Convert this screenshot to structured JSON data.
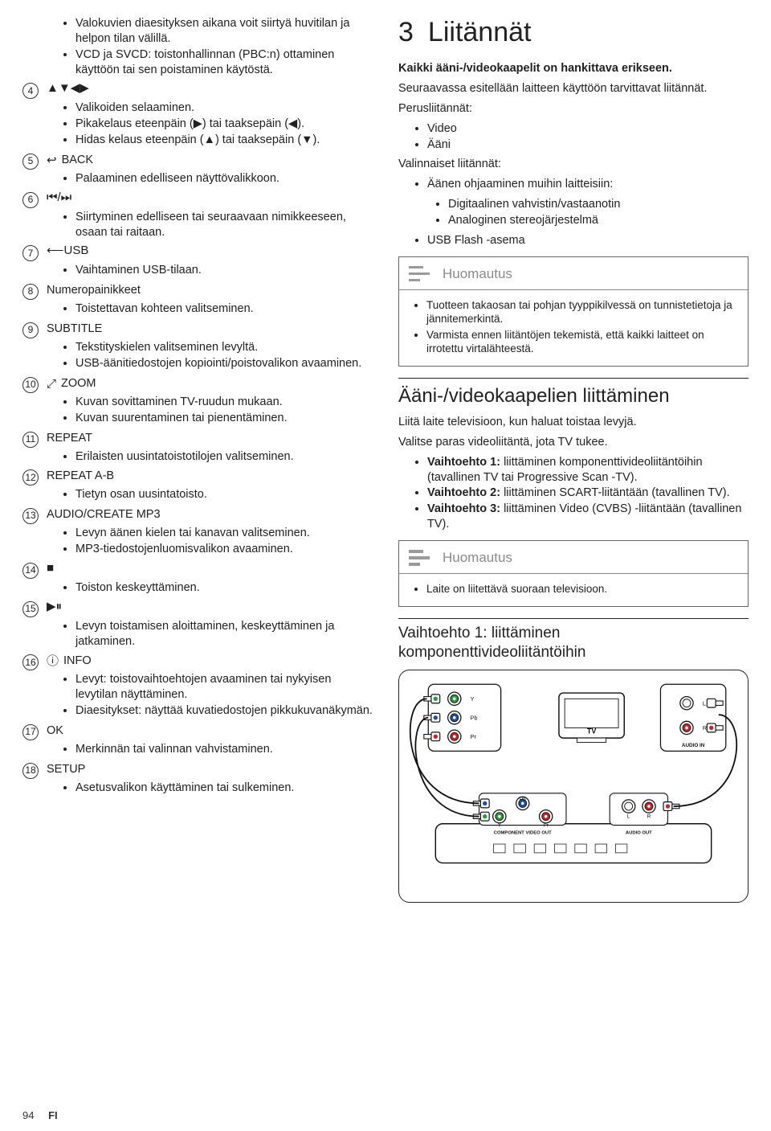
{
  "left": {
    "pre_items": [
      "Valokuvien diaesityksen aikana voit siirtyä huvitilan ja helpon tilan välillä.",
      "VCD ja SVCD: toistonhallinnan (PBC:n) ottaminen käyttöön tai sen poistaminen käytöstä."
    ],
    "entries": [
      {
        "num": "4",
        "symbol": "▲▼◀▶",
        "label": "",
        "bullets": [
          "Valikoiden selaaminen.",
          "Pikakelaus eteenpäin (▶) tai taaksepäin (◀).",
          "Hidas kelaus eteenpäin (▲) tai taaksepäin (▼)."
        ]
      },
      {
        "num": "5",
        "symbol": "↩",
        "label": "BACK",
        "bullets": [
          "Palaaminen edelliseen näyttövalikkoon."
        ]
      },
      {
        "num": "6",
        "symbol": "⏮/⏭",
        "label": "",
        "bullets": [
          "Siirtyminen edelliseen tai seuraavaan nimikkeeseen, osaan tai raitaan."
        ]
      },
      {
        "num": "7",
        "symbol": "⟵USB",
        "label": "",
        "bullets": [
          "Vaihtaminen USB-tilaan."
        ]
      },
      {
        "num": "8",
        "symbol": "",
        "label": "Numeropainikkeet",
        "bullets": [
          "Toistettavan kohteen valitseminen."
        ]
      },
      {
        "num": "9",
        "symbol": "",
        "label": "SUBTITLE",
        "bullets": [
          "Tekstityskielen valitseminen levyltä.",
          "USB-äänitiedostojen kopiointi/poistovalikon avaaminen."
        ]
      },
      {
        "num": "10",
        "symbol": "⤢",
        "label": "ZOOM",
        "bullets": [
          "Kuvan sovittaminen TV-ruudun mukaan.",
          "Kuvan suurentaminen tai pienentäminen."
        ]
      },
      {
        "num": "11",
        "symbol": "",
        "label": "REPEAT",
        "bullets": [
          "Erilaisten uusintatoistotilojen valitseminen."
        ]
      },
      {
        "num": "12",
        "symbol": "",
        "label": "REPEAT A-B",
        "bullets": [
          "Tietyn osan uusintatoisto."
        ]
      },
      {
        "num": "13",
        "symbol": "",
        "label": "AUDIO/CREATE MP3",
        "bullets": [
          "Levyn äänen kielen tai kanavan valitseminen.",
          "MP3-tiedostojenluomisvalikon avaaminen."
        ]
      },
      {
        "num": "14",
        "symbol": "■",
        "label": "",
        "bullets": [
          "Toiston keskeyttäminen."
        ]
      },
      {
        "num": "15",
        "symbol": "▶⏸",
        "label": "",
        "bullets": [
          "Levyn toistamisen aloittaminen, keskeyttäminen ja jatkaminen."
        ]
      },
      {
        "num": "16",
        "symbol": "ⓘ",
        "label": "INFO",
        "bullets": [
          "Levyt: toistovaihtoehtojen avaaminen tai nykyisen levytilan näyttäminen.",
          "Diaesitykset: näyttää kuvatiedostojen pikkukuvanäkymän."
        ]
      },
      {
        "num": "17",
        "symbol": "",
        "label": "OK",
        "bullets": [
          "Merkinnän tai valinnan vahvistaminen."
        ]
      },
      {
        "num": "18",
        "symbol": "",
        "label": "SETUP",
        "bullets": [
          "Asetusvalikon käyttäminen tai sulkeminen."
        ]
      }
    ]
  },
  "right": {
    "section_number": "3",
    "section_title": "Liitännät",
    "intro_bold": "Kaikki ääni-/videokaapelit on hankittava erikseen.",
    "intro_para": "Seuraavassa esitellään laitteen käyttöön tarvittavat liitännät.",
    "perus_heading": "Perusliitännät:",
    "perus": [
      "Video",
      "Ääni"
    ],
    "valinn_heading": "Valinnaiset liitännät:",
    "valinn_main": "Äänen ohjaaminen muihin laitteisiin:",
    "valinn_sub": [
      "Digitaalinen vahvistin/vastaanotin",
      "Analoginen stereojärjestelmä"
    ],
    "valinn_after": "USB Flash -asema",
    "note1_title": "Huomautus",
    "note1_items": [
      "Tuotteen takaosan tai pohjan tyyppikilvessä on tunnistetietoja ja jännitemerkintä.",
      "Varmista ennen liitäntöjen tekemistä, että kaikki laitteet on irrotettu virtalähteestä."
    ],
    "h2": "Ääni-/videokaapelien liittäminen",
    "h2_p1": "Liitä laite televisioon, kun haluat toistaa levyjä.",
    "h2_p2": "Valitse paras videoliitäntä, jota TV tukee.",
    "options": [
      {
        "b": "Vaihtoehto 1:",
        "t": " liittäminen komponenttivideoliitäntöihin (tavallinen TV tai Progressive Scan -TV)."
      },
      {
        "b": "Vaihtoehto 2:",
        "t": " liittäminen SCART-liitäntään (tavallinen TV)."
      },
      {
        "b": "Vaihtoehto 3:",
        "t": " liittäminen Video (CVBS) -liitäntään (tavallinen TV)."
      }
    ],
    "note2_title": "Huomautus",
    "note2_items": [
      "Laite on liitettävä suoraan televisioon."
    ],
    "h3": "Vaihtoehto 1: liittäminen komponenttivideoliitäntöihin",
    "diagram": {
      "tv_label": "TV",
      "ypbpr_top": {
        "y": "Y",
        "pb": "Pb",
        "pr": "Pr"
      },
      "audio_in": "AUDIO IN",
      "bottom_labels": {
        "y": "Y",
        "pb": "Pb",
        "pr": "Pr",
        "cvo": "COMPONENT VIDEO OUT",
        "aout": "AUDIO OUT",
        "l": "L",
        "r": "R"
      },
      "colors": {
        "y": "#2a9b3b",
        "pb": "#1d4fa8",
        "pr": "#c7262a",
        "white": "#ffffff",
        "stroke": "#111"
      }
    }
  },
  "footer": {
    "page": "94",
    "lang": "FI"
  }
}
